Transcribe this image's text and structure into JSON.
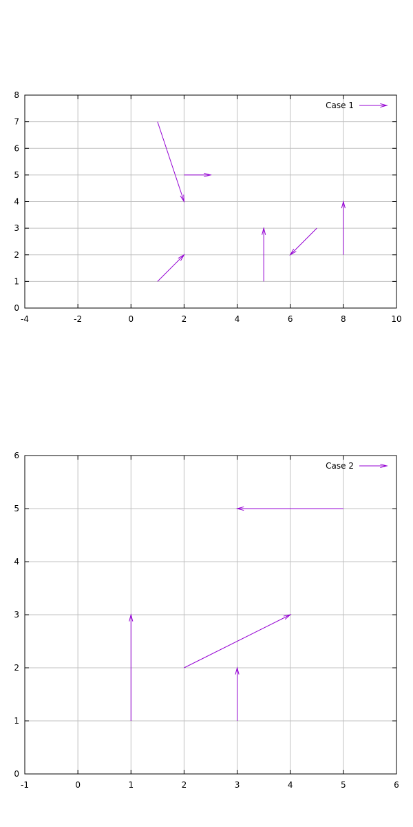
{
  "chart_data": [
    {
      "type": "vector",
      "title": "",
      "xlabel": "",
      "ylabel": "",
      "xlim": [
        -4,
        10
      ],
      "ylim": [
        0,
        8
      ],
      "xticks": [
        -4,
        -2,
        0,
        2,
        4,
        6,
        8,
        10
      ],
      "yticks": [
        0,
        1,
        2,
        3,
        4,
        5,
        6,
        7,
        8
      ],
      "grid": true,
      "legend_position": "top-right",
      "color": "#9400d3",
      "series": [
        {
          "name": "Case 1",
          "vectors": [
            {
              "x": 1,
              "y": 7,
              "dx": 1,
              "dy": -3
            },
            {
              "x": 2,
              "y": 5,
              "dx": 1,
              "dy": 0
            },
            {
              "x": 1,
              "y": 1,
              "dx": 1,
              "dy": 1
            },
            {
              "x": 5,
              "y": 1,
              "dx": 0,
              "dy": 2
            },
            {
              "x": 7,
              "y": 3,
              "dx": -1,
              "dy": -1
            },
            {
              "x": 8,
              "y": 2,
              "dx": 0,
              "dy": 2
            }
          ]
        }
      ]
    },
    {
      "type": "vector",
      "title": "",
      "xlabel": "",
      "ylabel": "",
      "xlim": [
        -1,
        6
      ],
      "ylim": [
        0,
        6
      ],
      "xticks": [
        -1,
        0,
        1,
        2,
        3,
        4,
        5,
        6
      ],
      "yticks": [
        0,
        1,
        2,
        3,
        4,
        5,
        6
      ],
      "grid": true,
      "legend_position": "top-right",
      "color": "#9400d3",
      "series": [
        {
          "name": "Case 2",
          "vectors": [
            {
              "x": 5,
              "y": 5,
              "dx": -2,
              "dy": 0
            },
            {
              "x": 1,
              "y": 1,
              "dx": 0,
              "dy": 2
            },
            {
              "x": 2,
              "y": 2,
              "dx": 2,
              "dy": 1
            },
            {
              "x": 3,
              "y": 1,
              "dx": 0,
              "dy": 1
            }
          ]
        }
      ]
    }
  ]
}
